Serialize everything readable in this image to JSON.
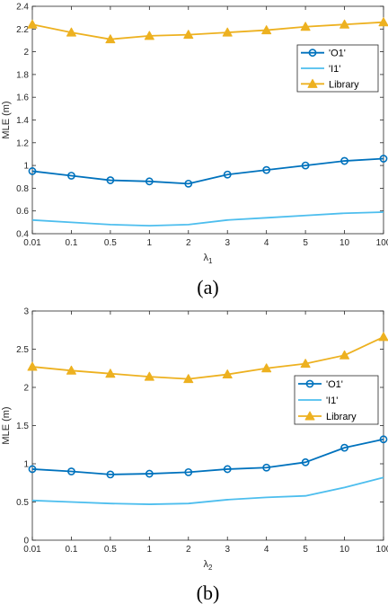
{
  "chart_data": [
    {
      "type": "line",
      "panel_label": "(a)",
      "xlabel": "λ1",
      "xlabel_main": "λ",
      "xlabel_sub": "1",
      "ylabel": "MLE (m)",
      "categories": [
        "0.01",
        "0.1",
        "0.5",
        "1",
        "2",
        "3",
        "4",
        "5",
        "10",
        "100"
      ],
      "ylim": [
        0.4,
        2.4
      ],
      "yticks": [
        "0.4",
        "0.6",
        "0.8",
        "1",
        "1.2",
        "1.4",
        "1.6",
        "1.8",
        "2",
        "2.2",
        "2.4"
      ],
      "ytick_values": [
        0.4,
        0.6,
        0.8,
        1.0,
        1.2,
        1.4,
        1.6,
        1.8,
        2.0,
        2.2,
        2.4
      ],
      "grid": false,
      "legend_position": "top-right",
      "series": [
        {
          "name": "'O1'",
          "color": "#0072BD",
          "marker": "circle",
          "values": [
            0.95,
            0.91,
            0.87,
            0.86,
            0.84,
            0.92,
            0.96,
            1.0,
            1.04,
            1.06
          ]
        },
        {
          "name": "'I1'",
          "color": "#4DBEEE",
          "marker": "none",
          "values": [
            0.52,
            0.5,
            0.48,
            0.47,
            0.48,
            0.52,
            0.54,
            0.56,
            0.58,
            0.59
          ]
        },
        {
          "name": "Library",
          "color": "#EDB120",
          "marker": "triangle",
          "values": [
            2.24,
            2.17,
            2.11,
            2.14,
            2.15,
            2.17,
            2.19,
            2.22,
            2.24,
            2.26
          ]
        }
      ]
    },
    {
      "type": "line",
      "panel_label": "(b)",
      "xlabel": "λ2",
      "xlabel_main": "λ",
      "xlabel_sub": "2",
      "ylabel": "MLE (m)",
      "categories": [
        "0.01",
        "0.1",
        "0.5",
        "1",
        "2",
        "3",
        "4",
        "5",
        "10",
        "100"
      ],
      "ylim": [
        0,
        3
      ],
      "yticks": [
        "0",
        "0.5",
        "1",
        "1.5",
        "2",
        "2.5",
        "3"
      ],
      "ytick_values": [
        0,
        0.5,
        1.0,
        1.5,
        2.0,
        2.5,
        3.0
      ],
      "grid": false,
      "legend_position": "right",
      "series": [
        {
          "name": "'O1'",
          "color": "#0072BD",
          "marker": "circle",
          "values": [
            0.93,
            0.9,
            0.86,
            0.87,
            0.89,
            0.93,
            0.95,
            1.02,
            1.21,
            1.32
          ]
        },
        {
          "name": "'I1'",
          "color": "#4DBEEE",
          "marker": "none",
          "values": [
            0.52,
            0.5,
            0.48,
            0.47,
            0.48,
            0.53,
            0.56,
            0.58,
            0.69,
            0.82
          ]
        },
        {
          "name": "Library",
          "color": "#EDB120",
          "marker": "triangle",
          "values": [
            2.27,
            2.22,
            2.18,
            2.14,
            2.11,
            2.17,
            2.25,
            2.31,
            2.42,
            2.66
          ]
        }
      ]
    }
  ]
}
